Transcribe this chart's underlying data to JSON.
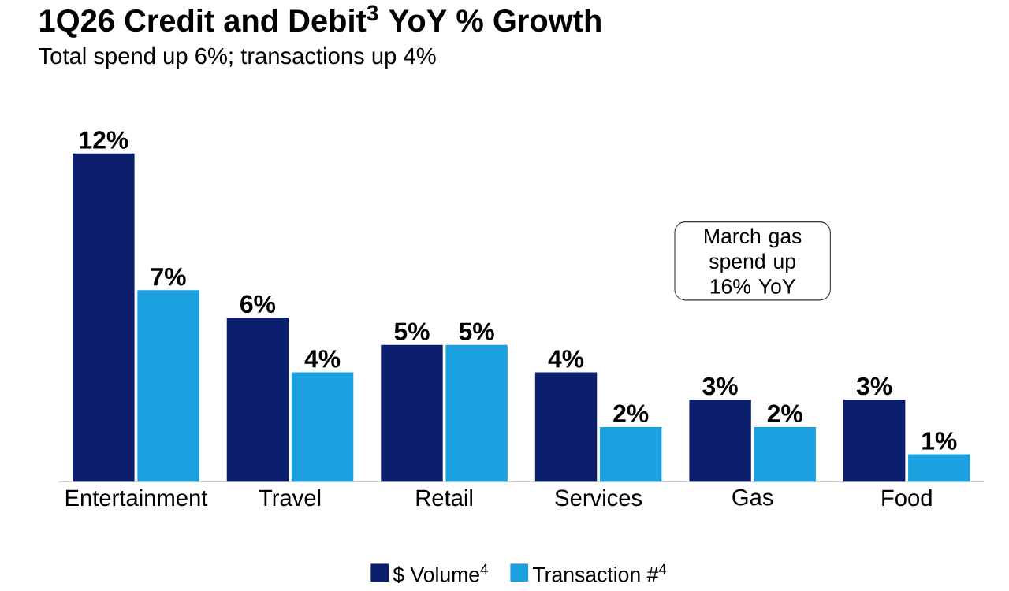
{
  "chart_data": {
    "type": "bar",
    "title": "1Q26 Credit and Debit$^{3}$ YoY % Growth",
    "subtitle": "Total spend up 6%; transactions up 4%",
    "categories": [
      "Entertainment",
      "Travel",
      "Retail",
      "Services",
      "Gas",
      "Food"
    ],
    "series": [
      {
        "name": "$ Volume$^{4}$",
        "color": "#0b1f6e",
        "values": [
          12,
          6,
          5,
          4,
          3,
          3
        ],
        "value_labels": [
          "12%",
          "6%",
          "5%",
          "4%",
          "3%",
          "3%"
        ]
      },
      {
        "name": "Transaction #$^{4}$",
        "color": "#1aa0df",
        "values": [
          7,
          4,
          5,
          2,
          2,
          1
        ],
        "value_labels": [
          "7%",
          "4%",
          "5%",
          "2%",
          "2%",
          "1%"
        ]
      }
    ],
    "annotations": [
      "March gas spend up 16% YoY"
    ],
    "legend": "bottom"
  }
}
